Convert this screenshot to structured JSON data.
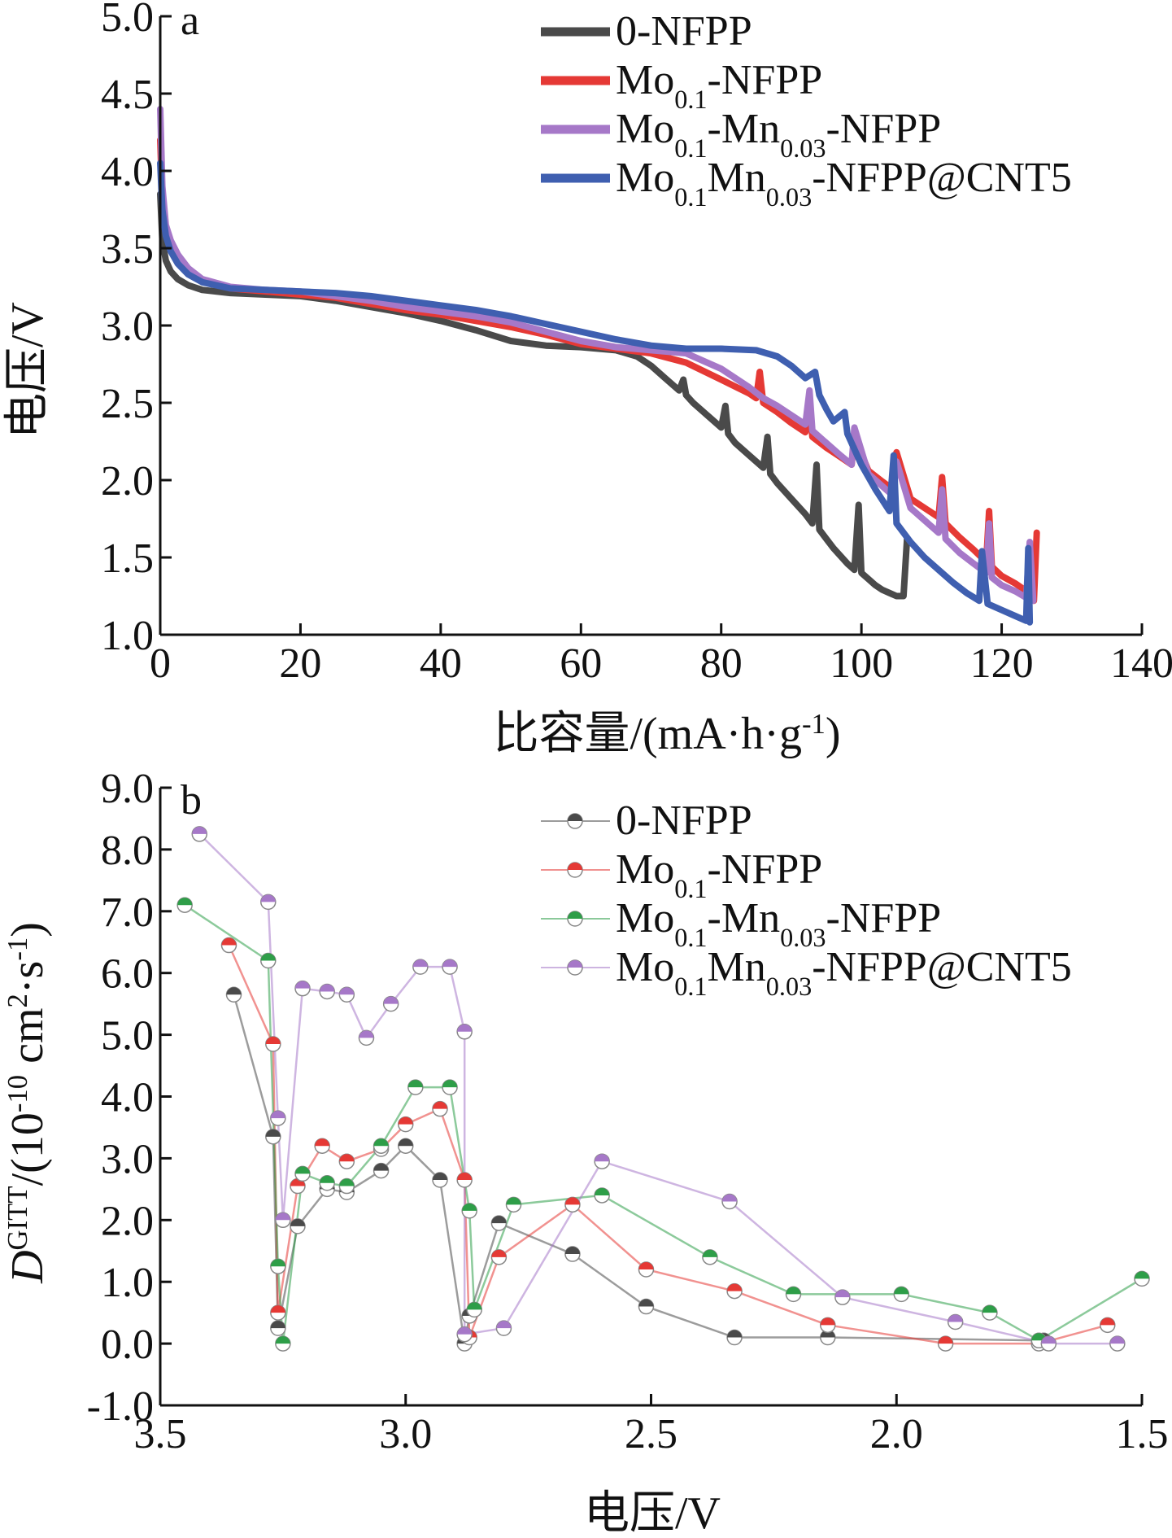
{
  "chart_data": [
    {
      "type": "line",
      "panel_label": "a",
      "xlabel": "比容量/(mA·h·g-1)",
      "ylabel": "电压/V",
      "xlim": [
        0,
        140
      ],
      "ylim": [
        1.0,
        5.0
      ],
      "xticks": [
        "0",
        "20",
        "40",
        "60",
        "80",
        "100",
        "120",
        "140"
      ],
      "yticks": [
        "1.0",
        "1.5",
        "2.0",
        "2.5",
        "3.0",
        "3.5",
        "4.0",
        "4.5",
        "5.0"
      ],
      "grid": false,
      "legend_position": "top-right",
      "series": [
        {
          "name": "0-NFPP",
          "color": "#4a4a4a",
          "x": [
            0,
            0.3,
            0.8,
            1.5,
            2.5,
            4,
            6,
            10,
            15,
            20,
            25,
            30,
            35,
            40,
            45,
            50,
            55,
            60,
            65,
            68,
            70,
            72,
            74,
            74.6,
            75,
            76,
            78,
            80,
            80.6,
            81,
            82,
            84,
            86,
            86.6,
            87,
            88,
            90,
            92,
            93,
            93.6,
            94,
            95,
            96,
            97,
            98,
            99,
            99.6,
            100,
            101,
            102,
            103,
            104,
            105,
            106,
            106.5
          ],
          "y": [
            3.85,
            3.55,
            3.42,
            3.35,
            3.3,
            3.26,
            3.23,
            3.21,
            3.2,
            3.19,
            3.16,
            3.12,
            3.08,
            3.03,
            2.97,
            2.9,
            2.87,
            2.86,
            2.84,
            2.8,
            2.74,
            2.66,
            2.58,
            2.65,
            2.55,
            2.5,
            2.42,
            2.34,
            2.48,
            2.3,
            2.24,
            2.16,
            2.08,
            2.28,
            2.04,
            1.98,
            1.88,
            1.78,
            1.72,
            2.1,
            1.68,
            1.62,
            1.56,
            1.51,
            1.46,
            1.42,
            1.84,
            1.4,
            1.36,
            1.32,
            1.29,
            1.27,
            1.25,
            1.25,
            1.62
          ]
        },
        {
          "name": "Mo0.1-NFPP",
          "color": "#e53935",
          "x": [
            0,
            0.3,
            0.8,
            1.5,
            2.5,
            4,
            6,
            10,
            15,
            20,
            25,
            30,
            35,
            40,
            45,
            50,
            55,
            60,
            65,
            70,
            75,
            80,
            84,
            85,
            85.5,
            86,
            88,
            90,
            92,
            92.6,
            93,
            95,
            97,
            98.6,
            99,
            101,
            103,
            104.5,
            105,
            107,
            109,
            111,
            111.5,
            112,
            114,
            116,
            117.8,
            118.2,
            118.6,
            120,
            122,
            123.6,
            124,
            124.6,
            125
          ],
          "y": [
            4.2,
            3.8,
            3.6,
            3.5,
            3.42,
            3.35,
            3.29,
            3.24,
            3.22,
            3.2,
            3.18,
            3.14,
            3.1,
            3.07,
            3.03,
            2.99,
            2.94,
            2.88,
            2.85,
            2.82,
            2.76,
            2.65,
            2.56,
            2.53,
            2.7,
            2.5,
            2.44,
            2.37,
            2.31,
            2.5,
            2.28,
            2.21,
            2.15,
            2.1,
            2.28,
            2.06,
            1.99,
            1.94,
            2.18,
            1.88,
            1.82,
            1.76,
            2.02,
            1.72,
            1.63,
            1.55,
            1.47,
            1.8,
            1.44,
            1.38,
            1.33,
            1.28,
            1.58,
            1.22,
            1.66
          ]
        },
        {
          "name": "Mo0.1-Mn0.03-NFPP",
          "color": "#a678c8",
          "x": [
            0,
            0.3,
            0.8,
            1.5,
            2.5,
            4,
            6,
            10,
            15,
            20,
            25,
            30,
            35,
            40,
            45,
            50,
            55,
            60,
            65,
            70,
            75,
            80,
            84,
            86,
            88,
            90,
            92,
            92.6,
            93,
            95,
            97,
            98.6,
            99,
            101,
            103,
            104.5,
            105,
            107,
            109,
            111,
            111.5,
            112,
            114,
            116,
            117.8,
            118.2,
            118.6,
            120,
            122,
            123.5,
            124,
            124.5
          ],
          "y": [
            4.4,
            3.9,
            3.65,
            3.55,
            3.46,
            3.37,
            3.3,
            3.25,
            3.23,
            3.22,
            3.19,
            3.16,
            3.12,
            3.09,
            3.06,
            3.02,
            2.96,
            2.9,
            2.86,
            2.84,
            2.82,
            2.72,
            2.6,
            2.53,
            2.48,
            2.42,
            2.36,
            2.58,
            2.32,
            2.24,
            2.16,
            2.1,
            2.34,
            2.04,
            1.96,
            1.9,
            2.12,
            1.82,
            1.74,
            1.66,
            1.94,
            1.62,
            1.53,
            1.46,
            1.4,
            1.72,
            1.37,
            1.32,
            1.28,
            1.24,
            1.6,
            1.22
          ]
        },
        {
          "name": "Mo0.1Mn0.03-NFPP@CNT5",
          "color": "#3f5fb0",
          "x": [
            0,
            0.3,
            0.8,
            1.5,
            2.5,
            4,
            6,
            10,
            15,
            20,
            25,
            30,
            35,
            40,
            45,
            50,
            55,
            60,
            65,
            70,
            75,
            80,
            85,
            88,
            90,
            92,
            93.4,
            94,
            95,
            96,
            97.6,
            98,
            99,
            100,
            102,
            104,
            104.6,
            105,
            107,
            109,
            111,
            113,
            115,
            116.8,
            117.2,
            118,
            120,
            122,
            123.5,
            123.8,
            124
          ],
          "y": [
            4.05,
            3.75,
            3.58,
            3.48,
            3.4,
            3.33,
            3.28,
            3.24,
            3.23,
            3.22,
            3.21,
            3.19,
            3.16,
            3.13,
            3.1,
            3.06,
            3.01,
            2.96,
            2.91,
            2.87,
            2.85,
            2.85,
            2.84,
            2.8,
            2.74,
            2.66,
            2.7,
            2.55,
            2.46,
            2.38,
            2.44,
            2.3,
            2.2,
            2.1,
            1.94,
            1.8,
            2.16,
            1.72,
            1.6,
            1.5,
            1.42,
            1.34,
            1.27,
            1.22,
            1.54,
            1.2,
            1.16,
            1.12,
            1.09,
            1.56,
            1.08
          ]
        }
      ]
    },
    {
      "type": "line",
      "panel_label": "b",
      "xlabel": "电压/V",
      "ylabel": "DGITT/(10-10 cm2·s-1)",
      "xlim": [
        3.5,
        1.5
      ],
      "ylim": [
        -1.0,
        9.0
      ],
      "x_inverted": true,
      "xticks": [
        "3.5",
        "3.0",
        "2.5",
        "2.0",
        "1.5"
      ],
      "yticks": [
        "-1.0",
        "0.0",
        "1.0",
        "2.0",
        "3.0",
        "4.0",
        "5.0",
        "6.0",
        "7.0",
        "8.0",
        "9.0"
      ],
      "grid": false,
      "legend_position": "top-right",
      "marker": "half-filled circle",
      "series": [
        {
          "name": "0-NFPP",
          "color": "#4a4a4a",
          "x": [
            3.35,
            3.27,
            3.26,
            3.22,
            3.16,
            3.12,
            3.05,
            3.0,
            2.93,
            2.88,
            2.87,
            2.81,
            2.66,
            2.51,
            2.33,
            2.14,
            1.7
          ],
          "y": [
            5.65,
            3.35,
            0.25,
            1.9,
            2.5,
            2.45,
            2.8,
            3.2,
            2.65,
            0.0,
            0.45,
            1.95,
            1.45,
            0.6,
            0.1,
            0.1,
            0.05
          ]
        },
        {
          "name": "Mo0.1-NFPP",
          "color": "#e53935",
          "x": [
            3.36,
            3.27,
            3.26,
            3.22,
            3.17,
            3.12,
            3.05,
            3.0,
            2.93,
            2.88,
            2.87,
            2.81,
            2.66,
            2.51,
            2.33,
            2.14,
            1.9,
            1.71,
            1.57
          ],
          "y": [
            6.45,
            4.85,
            0.5,
            2.55,
            3.2,
            2.95,
            3.15,
            3.55,
            3.8,
            2.65,
            0.1,
            1.4,
            2.25,
            1.2,
            0.85,
            0.3,
            0.0,
            0.0,
            0.3
          ]
        },
        {
          "name": "Mo0.1-Mn0.03-NFPP",
          "color": "#2e9e48",
          "x": [
            3.45,
            3.28,
            3.26,
            3.25,
            3.21,
            3.16,
            3.12,
            3.05,
            2.98,
            2.91,
            2.87,
            2.86,
            2.78,
            2.6,
            2.38,
            2.21,
            1.99,
            1.81,
            1.71,
            1.5
          ],
          "y": [
            7.1,
            6.2,
            1.25,
            0.0,
            2.75,
            2.6,
            2.55,
            3.2,
            4.15,
            4.15,
            2.15,
            0.55,
            2.25,
            2.4,
            1.4,
            0.8,
            0.8,
            0.5,
            0.05,
            1.05
          ]
        },
        {
          "name": "Mo0.1Mn0.03-NFPP@CNT5",
          "color": "#a678c8",
          "x": [
            3.42,
            3.28,
            3.26,
            3.25,
            3.21,
            3.16,
            3.12,
            3.08,
            3.03,
            2.97,
            2.91,
            2.88,
            2.88,
            2.8,
            2.6,
            2.34,
            2.11,
            1.88,
            1.69,
            1.55
          ],
          "y": [
            8.25,
            7.15,
            3.65,
            2.0,
            5.75,
            5.7,
            5.65,
            4.95,
            5.5,
            6.1,
            6.1,
            5.05,
            0.15,
            0.25,
            2.95,
            2.3,
            0.75,
            0.35,
            0.0,
            0.0
          ]
        }
      ]
    }
  ]
}
